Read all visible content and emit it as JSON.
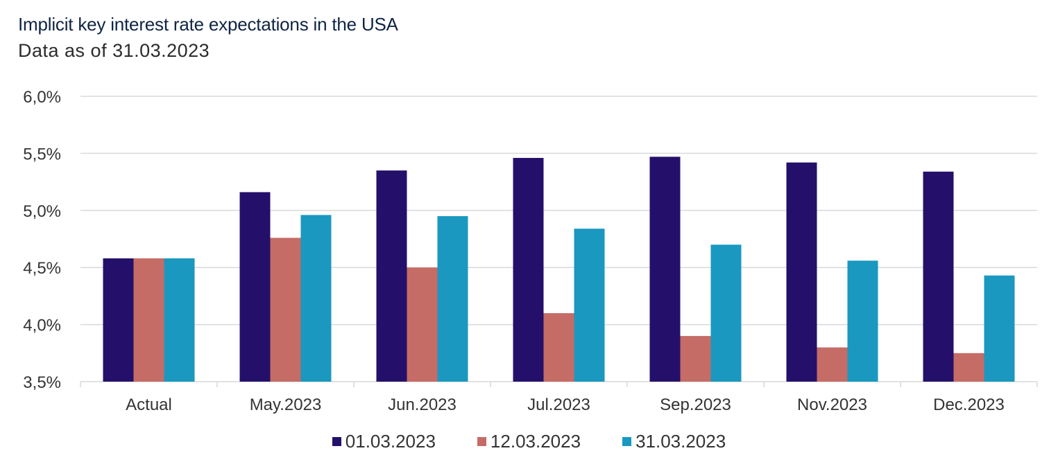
{
  "header": {
    "title": "Implicit key interest rate expectations in the USA",
    "subtitle": "Data as of 31.03.2023"
  },
  "chart_data": {
    "type": "bar",
    "title": "Implicit key interest rate expectations in the USA",
    "subtitle": "Data as of 31.03.2023",
    "xlabel": "",
    "ylabel": "",
    "ylim": [
      3.5,
      6.0
    ],
    "yticks": [
      3.5,
      4.0,
      4.5,
      5.0,
      5.5,
      6.0
    ],
    "ytick_labels": [
      "3,5%",
      "4,0%",
      "4,5%",
      "5,0%",
      "5,5%",
      "6,0%"
    ],
    "grid": true,
    "legend_position": "bottom",
    "categories": [
      "Actual",
      "May.2023",
      "Jun.2023",
      "Jul.2023",
      "Sep.2023",
      "Nov.2023",
      "Dec.2023"
    ],
    "series": [
      {
        "name": "01.03.2023",
        "color": "#24106a",
        "values": [
          4.58,
          5.16,
          5.35,
          5.46,
          5.47,
          5.42,
          5.34
        ]
      },
      {
        "name": "12.03.2023",
        "color": "#c56c66",
        "values": [
          4.58,
          4.76,
          4.5,
          4.1,
          3.9,
          3.8,
          3.75
        ]
      },
      {
        "name": "31.03.2023",
        "color": "#1a98c0",
        "values": [
          4.58,
          4.96,
          4.95,
          4.84,
          4.7,
          4.56,
          4.43
        ]
      }
    ]
  }
}
